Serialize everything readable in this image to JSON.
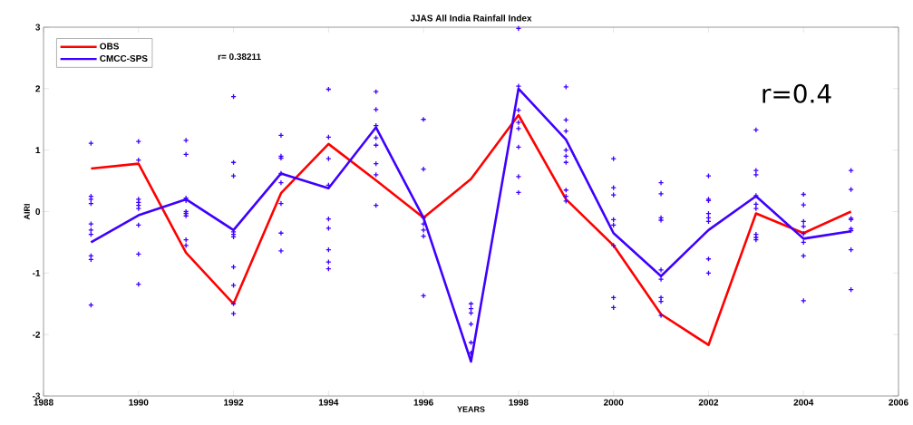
{
  "chart_data": {
    "type": "line",
    "title": "JJAS All India Rainfall Index",
    "xlabel": "YEARS",
    "ylabel": "AIRI",
    "xlim": [
      1988,
      2006
    ],
    "xticks": [
      1988,
      1990,
      1992,
      1994,
      1996,
      1998,
      2000,
      2002,
      2004,
      2006
    ],
    "ylim": [
      -3,
      3
    ],
    "yticks": [
      -3,
      -2,
      -1,
      0,
      1,
      2,
      3
    ],
    "grid": false,
    "legend": "top left",
    "annotations": [
      "r= 0.38211",
      "r=0.4"
    ],
    "series": [
      {
        "name": "OBS",
        "color": "#ff0000",
        "x": [
          1989,
          1990,
          1991,
          1992,
          1993,
          1994,
          1995,
          1996,
          1997,
          1998,
          1999,
          2000,
          2001,
          2002,
          2003,
          2004,
          2005
        ],
        "values": [
          0.7,
          0.78,
          -0.67,
          -1.5,
          0.3,
          1.1,
          0.51,
          -0.1,
          0.53,
          1.57,
          0.2,
          -0.55,
          -1.67,
          -2.17,
          -0.03,
          -0.35,
          0.0
        ]
      },
      {
        "name": "CMCC-SPS",
        "color": "#3f00ff",
        "x": [
          1989,
          1990,
          1991,
          1992,
          1993,
          1994,
          1995,
          1996,
          1997,
          1998,
          1999,
          2000,
          2001,
          2002,
          2003,
          2004,
          2005
        ],
        "values": [
          -0.5,
          -0.06,
          0.2,
          -0.3,
          0.62,
          0.38,
          1.37,
          -0.1,
          -2.44,
          2.0,
          1.17,
          -0.35,
          -1.05,
          -0.3,
          0.25,
          -0.44,
          -0.32
        ]
      },
      {
        "type": "scatter",
        "marker": "cross",
        "color": "#3f00ff",
        "x": [
          1989,
          1989,
          1989,
          1989,
          1989,
          1989,
          1989,
          1989,
          1989,
          1989,
          1990,
          1990,
          1990,
          1990,
          1990,
          1990,
          1990,
          1990,
          1990,
          1991,
          1991,
          1991,
          1991,
          1991,
          1991,
          1991,
          1991,
          1991,
          1992,
          1992,
          1992,
          1992,
          1992,
          1992,
          1992,
          1992,
          1992,
          1992,
          1993,
          1993,
          1993,
          1993,
          1993,
          1993,
          1993,
          1993,
          1994,
          1994,
          1994,
          1994,
          1994,
          1994,
          1994,
          1994,
          1994,
          1995,
          1995,
          1995,
          1995,
          1995,
          1995,
          1995,
          1995,
          1996,
          1996,
          1996,
          1996,
          1996,
          1996,
          1996,
          1997,
          1997,
          1997,
          1997,
          1997,
          1997,
          1998,
          1998,
          1998,
          1998,
          1998,
          1998,
          1998,
          1998,
          1999,
          1999,
          1999,
          1999,
          1999,
          1999,
          1999,
          1999,
          1999,
          2000,
          2000,
          2000,
          2000,
          2000,
          2000,
          2000,
          2000,
          2001,
          2001,
          2001,
          2001,
          2001,
          2001,
          2001,
          2001,
          2001,
          2002,
          2002,
          2002,
          2002,
          2002,
          2002,
          2002,
          2002,
          2003,
          2003,
          2003,
          2003,
          2003,
          2003,
          2003,
          2003,
          2003,
          2004,
          2004,
          2004,
          2004,
          2004,
          2004,
          2004,
          2004,
          2005,
          2005,
          2005,
          2005,
          2005,
          2005,
          2005,
          2005
        ],
        "values": [
          1.11,
          0.25,
          0.2,
          0.13,
          -0.2,
          -0.3,
          -0.37,
          -0.72,
          -0.78,
          -1.52,
          1.14,
          0.84,
          0.2,
          0.15,
          0.1,
          0.05,
          -0.22,
          -0.69,
          -1.18,
          1.16,
          0.93,
          0.22,
          0.18,
          0.0,
          -0.03,
          -0.07,
          -0.46,
          -0.55,
          1.87,
          0.8,
          0.58,
          -0.33,
          -0.37,
          -0.41,
          -0.9,
          -1.2,
          -1.5,
          -1.66,
          1.24,
          0.9,
          0.87,
          0.62,
          0.47,
          0.13,
          -0.35,
          -0.64,
          1.99,
          1.21,
          0.86,
          0.43,
          -0.12,
          -0.27,
          -0.62,
          -0.82,
          -0.93,
          1.95,
          1.66,
          1.4,
          1.2,
          1.08,
          0.78,
          0.6,
          0.1,
          1.5,
          0.69,
          -0.1,
          -0.2,
          -0.3,
          -0.4,
          -1.37,
          -1.5,
          -1.58,
          -1.65,
          -1.83,
          -2.13,
          -2.3,
          2.98,
          2.04,
          1.65,
          1.45,
          1.35,
          1.05,
          0.57,
          0.31,
          2.03,
          1.49,
          1.31,
          1.0,
          0.9,
          0.8,
          0.35,
          0.25,
          0.17,
          0.86,
          0.39,
          0.27,
          -0.13,
          -0.22,
          -0.55,
          -1.4,
          -1.56,
          0.47,
          0.29,
          -0.1,
          -0.14,
          -0.95,
          -1.1,
          -1.4,
          -1.46,
          -1.69,
          0.58,
          0.2,
          0.18,
          -0.03,
          -0.1,
          -0.16,
          -0.77,
          -1.0,
          1.33,
          0.67,
          0.6,
          0.26,
          0.12,
          0.05,
          -0.37,
          -0.42,
          -0.46,
          0.28,
          0.11,
          -0.16,
          -0.24,
          -0.36,
          -0.5,
          -0.72,
          -1.45,
          0.67,
          0.36,
          -0.11,
          -0.13,
          -0.28,
          -0.31,
          -0.62,
          -1.27
        ]
      }
    ]
  }
}
